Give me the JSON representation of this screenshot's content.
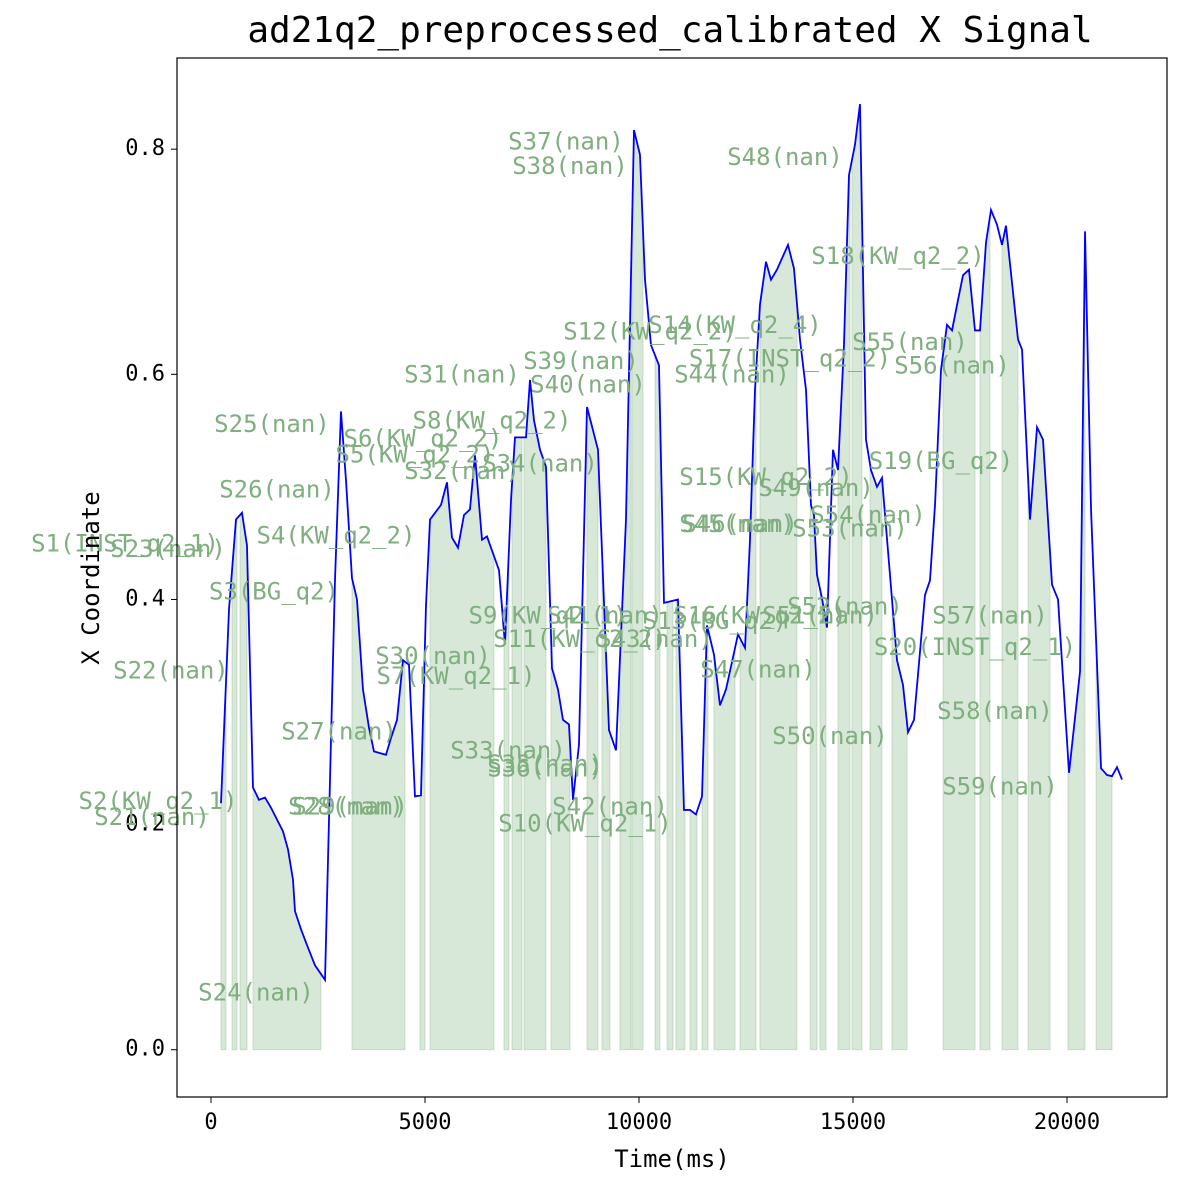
{
  "chart_data": {
    "type": "line",
    "title": "ad21q2_preprocessed_calibrated X Signal",
    "xlabel": "Time(ms)",
    "ylabel": "X Coordinate",
    "xlim": [
      -794,
      22336
    ],
    "ylim": [
      -0.042,
      0.881
    ],
    "xticks": [
      0,
      5000,
      10000,
      15000,
      20000
    ],
    "yticks": [
      {
        "value": 0,
        "label": "0.0"
      },
      0.2,
      0.4,
      0.6,
      0.8
    ],
    "series": [
      {
        "color": "#0000ff",
        "x": [
          234,
          421,
          584,
          724,
          841,
          981,
          1121,
          1262,
          1402,
          1682,
          1799,
          1916,
          1963,
          2103,
          2243,
          2430,
          2664,
          2897,
          3037,
          3154,
          3294,
          3411,
          3551,
          3692,
          3808,
          4089,
          4206,
          4346,
          4486,
          4626,
          4766,
          4906,
          5023,
          5117,
          5374,
          5514,
          5631,
          5771,
          5911,
          6051,
          6168,
          6332,
          6448,
          6729,
          6869,
          7009,
          7103,
          7243,
          7360,
          7453,
          7547,
          7687,
          7827,
          7967,
          8107,
          8224,
          8364,
          8458,
          8598,
          8785,
          9042,
          9299,
          9463,
          9696,
          9883,
          10023,
          10140,
          10280,
          10467,
          10584,
          10911,
          11051,
          11191,
          11331,
          11472,
          11588,
          11752,
          11892,
          12032,
          12313,
          12477,
          12593,
          12710,
          12827,
          12967,
          13084,
          13224,
          13481,
          13621,
          13761,
          13902,
          14018,
          14088,
          14158,
          14275,
          14392,
          14532,
          14649,
          14789,
          14906,
          15046,
          15163,
          15303,
          15420,
          15560,
          15677,
          16028,
          16168,
          16285,
          16425,
          16682,
          16799,
          16916,
          17056,
          17196,
          17313,
          17453,
          17570,
          17710,
          17850,
          17967,
          18107,
          18224,
          18364,
          18481,
          18574,
          18855,
          18949,
          19136,
          19299,
          19439,
          19650,
          19790,
          20047,
          20304,
          20421,
          20561,
          20795,
          20935,
          21051,
          21168,
          21285
        ],
        "values": [
          0.219,
          0.391,
          0.471,
          0.477,
          0.448,
          0.233,
          0.222,
          0.224,
          0.215,
          0.194,
          0.178,
          0.151,
          0.123,
          0.107,
          0.093,
          0.075,
          0.062,
          0.417,
          0.567,
          0.506,
          0.419,
          0.4,
          0.32,
          0.286,
          0.265,
          0.262,
          0.277,
          0.293,
          0.346,
          0.342,
          0.225,
          0.226,
          0.394,
          0.471,
          0.484,
          0.504,
          0.455,
          0.446,
          0.475,
          0.48,
          0.528,
          0.453,
          0.456,
          0.426,
          0.36,
          0.488,
          0.544,
          0.544,
          0.544,
          0.595,
          0.559,
          0.533,
          0.518,
          0.339,
          0.32,
          0.293,
          0.289,
          0.222,
          0.271,
          0.571,
          0.533,
          0.284,
          0.266,
          0.471,
          0.817,
          0.795,
          0.684,
          0.626,
          0.608,
          0.397,
          0.4,
          0.213,
          0.213,
          0.209,
          0.225,
          0.377,
          0.351,
          0.306,
          0.32,
          0.369,
          0.357,
          0.453,
          0.586,
          0.662,
          0.7,
          0.684,
          0.693,
          0.715,
          0.694,
          0.631,
          0.586,
          0.484,
          0.475,
          0.422,
          0.401,
          0.375,
          0.533,
          0.515,
          0.626,
          0.777,
          0.804,
          0.84,
          0.542,
          0.515,
          0.5,
          0.508,
          0.346,
          0.324,
          0.282,
          0.293,
          0.404,
          0.417,
          0.484,
          0.604,
          0.644,
          0.639,
          0.666,
          0.688,
          0.693,
          0.639,
          0.639,
          0.717,
          0.746,
          0.733,
          0.715,
          0.732,
          0.631,
          0.622,
          0.471,
          0.553,
          0.542,
          0.413,
          0.4,
          0.246,
          0.336,
          0.727,
          0.48,
          0.25,
          0.244,
          0.243,
          0.251,
          0.24
        ]
      }
    ],
    "shade_color": "#8fbc8f",
    "segments": [
      [
        234,
        350
      ],
      [
        491,
        607
      ],
      [
        678,
        841
      ],
      [
        981,
        2570
      ],
      [
        3294,
        4533
      ],
      [
        4883,
        5000
      ],
      [
        5117,
        6612
      ],
      [
        6846,
        6962
      ],
      [
        7033,
        7266
      ],
      [
        7313,
        7827
      ],
      [
        7944,
        8388
      ],
      [
        8785,
        9042
      ],
      [
        9135,
        9322
      ],
      [
        9556,
        9813
      ],
      [
        9836,
        10093
      ],
      [
        10374,
        10490
      ],
      [
        10654,
        10794
      ],
      [
        10864,
        11075
      ],
      [
        11191,
        11355
      ],
      [
        11472,
        11612
      ],
      [
        11752,
        12243
      ],
      [
        12360,
        12734
      ],
      [
        12827,
        13691
      ],
      [
        14000,
        14158
      ],
      [
        14229,
        14369
      ],
      [
        14649,
        14930
      ],
      [
        14976,
        15210
      ],
      [
        15397,
        15677
      ],
      [
        15911,
        16261
      ],
      [
        17103,
        17850
      ],
      [
        17967,
        18200
      ],
      [
        18481,
        18855
      ],
      [
        19089,
        19603
      ],
      [
        20023,
        20421
      ],
      [
        20678,
        21051
      ]
    ],
    "annotations": [
      {
        "text": "S1(INST_q2_1)",
        "x": -2009,
        "y": 0.449
      },
      {
        "text": "S23(nan)",
        "x": -1005,
        "y": 0.444
      },
      {
        "text": "S2(KW_q2_1)",
        "x": -1238,
        "y": 0.22
      },
      {
        "text": "S21(nan)",
        "x": -1378,
        "y": 0.206
      },
      {
        "text": "S3(BG_q2)",
        "x": 1472,
        "y": 0.406
      },
      {
        "text": "S22(nan)",
        "x": -935,
        "y": 0.336
      },
      {
        "text": "S4(KW_q2_2)",
        "x": 2921,
        "y": 0.456
      },
      {
        "text": "S25(nan)",
        "x": 1425,
        "y": 0.555
      },
      {
        "text": "S26(nan)",
        "x": 1542,
        "y": 0.497
      },
      {
        "text": "S24(nan)",
        "x": 1051,
        "y": 0.05
      },
      {
        "text": "S27(nan)",
        "x": 2991,
        "y": 0.282
      },
      {
        "text": "S28(nan)",
        "x": 3154,
        "y": 0.215
      },
      {
        "text": "S29(nan)",
        "x": 3248,
        "y": 0.215
      },
      {
        "text": "S30(nan)",
        "x": 5187,
        "y": 0.349
      },
      {
        "text": "S7(KW_q2_1)",
        "x": 5724,
        "y": 0.331
      },
      {
        "text": "S5(KW_q2_2)",
        "x": 4766,
        "y": 0.528
      },
      {
        "text": "S6(KW_q2_2)",
        "x": 4953,
        "y": 0.542
      },
      {
        "text": "S8(KW_q2_2)",
        "x": 6565,
        "y": 0.558
      },
      {
        "text": "S32(nan)",
        "x": 5864,
        "y": 0.513
      },
      {
        "text": "S34(nan)",
        "x": 7687,
        "y": 0.52
      },
      {
        "text": "S31(nan)",
        "x": 5864,
        "y": 0.599
      },
      {
        "text": "S33(nan)",
        "x": 6939,
        "y": 0.265
      },
      {
        "text": "S35(nan)",
        "x": 7804,
        "y": 0.253
      },
      {
        "text": "S36(nan)",
        "x": 7804,
        "y": 0.249
      },
      {
        "text": "S9(KW_q2_1)",
        "x": 7874,
        "y": 0.385
      },
      {
        "text": "S41(nan)",
        "x": 9206,
        "y": 0.385
      },
      {
        "text": "S11(KW_q2_2)",
        "x": 8621,
        "y": 0.364
      },
      {
        "text": "S43(nan)",
        "x": 10373,
        "y": 0.364
      },
      {
        "text": "S13(BG_q2)",
        "x": 11775,
        "y": 0.38
      },
      {
        "text": "S16(KW_q2_2)",
        "x": 12827,
        "y": 0.385
      },
      {
        "text": "S51(nan)",
        "x": 14229,
        "y": 0.385
      },
      {
        "text": "S52(nan)",
        "x": 14813,
        "y": 0.393
      },
      {
        "text": "S20(INST_q2_1)",
        "x": 17850,
        "y": 0.357
      },
      {
        "text": "S57(nan)",
        "x": 18200,
        "y": 0.385
      },
      {
        "text": "S58(nan)",
        "x": 18317,
        "y": 0.3
      },
      {
        "text": "S59(nan)",
        "x": 18434,
        "y": 0.233
      },
      {
        "text": "S50(nan)",
        "x": 14462,
        "y": 0.278
      },
      {
        "text": "S47(nan)",
        "x": 12780,
        "y": 0.337
      },
      {
        "text": "S42(nan)",
        "x": 9322,
        "y": 0.215
      },
      {
        "text": "S10(KW_q2_1)",
        "x": 8738,
        "y": 0.2
      },
      {
        "text": "S37(nan)",
        "x": 8294,
        "y": 0.806
      },
      {
        "text": "S38(nan)",
        "x": 8388,
        "y": 0.784
      },
      {
        "text": "S39(nan)",
        "x": 8645,
        "y": 0.611
      },
      {
        "text": "S40(nan)",
        "x": 8808,
        "y": 0.59
      },
      {
        "text": "S12(KW_q2_2)",
        "x": 10257,
        "y": 0.637
      },
      {
        "text": "S14(KW_q2_4)",
        "x": 12243,
        "y": 0.643
      },
      {
        "text": "S44(nan)",
        "x": 12173,
        "y": 0.599
      },
      {
        "text": "S17(INST_q2_2)",
        "x": 13528,
        "y": 0.613
      },
      {
        "text": "S48(nan)",
        "x": 13411,
        "y": 0.792
      },
      {
        "text": "S18(KW_q2_2)",
        "x": 16051,
        "y": 0.704
      },
      {
        "text": "S55(nan)",
        "x": 16331,
        "y": 0.628
      },
      {
        "text": "S56(nan)",
        "x": 17313,
        "y": 0.607
      },
      {
        "text": "S19(BG_q2)",
        "x": 17056,
        "y": 0.522
      },
      {
        "text": "S15(KW_q2_2)",
        "x": 12967,
        "y": 0.508
      },
      {
        "text": "S49(nan)",
        "x": 14135,
        "y": 0.498
      },
      {
        "text": "S45(nan)",
        "x": 12290,
        "y": 0.466
      },
      {
        "text": "S46(nan)",
        "x": 12360,
        "y": 0.466
      },
      {
        "text": "S53(nan)",
        "x": 14929,
        "y": 0.462
      },
      {
        "text": "S54(nan)",
        "x": 15350,
        "y": 0.474
      }
    ]
  }
}
